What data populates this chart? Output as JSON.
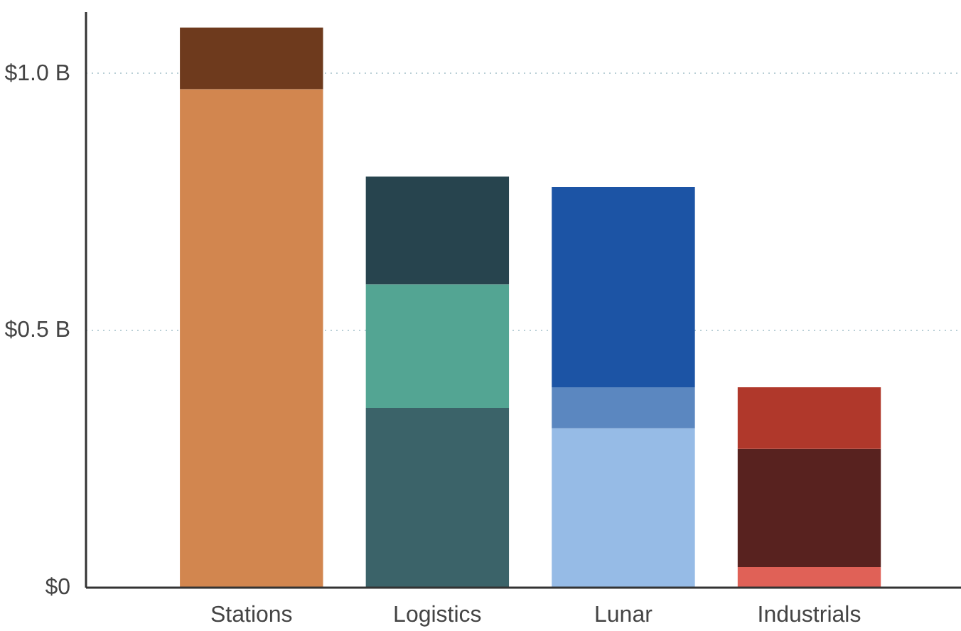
{
  "chart_data": {
    "type": "bar",
    "stacked": true,
    "categories": [
      "Stations",
      "Logistics",
      "Lunar",
      "Industrials"
    ],
    "series": [
      {
        "colors": [
          "#d2864f",
          "#3b6369",
          "#96bbe6",
          "#e06157"
        ],
        "values": [
          0.97,
          0.35,
          0.31,
          0.04
        ]
      },
      {
        "colors": [
          "#6e3a1d",
          "#53a593",
          "#5b87c0",
          "#58221f"
        ],
        "values": [
          0.12,
          0.24,
          0.08,
          0.23
        ]
      },
      {
        "colors": [
          null,
          "#27444e",
          "#1c54a5",
          "#b0382b"
        ],
        "values": [
          null,
          0.21,
          0.39,
          0.12
        ]
      }
    ],
    "ylim": [
      0,
      1.12
    ],
    "yticks": [
      {
        "value": 0,
        "label": "$0"
      },
      {
        "value": 0.5,
        "label": "$0.5 B"
      },
      {
        "value": 1.0,
        "label": "$1.0 B"
      }
    ],
    "grid": "y"
  }
}
